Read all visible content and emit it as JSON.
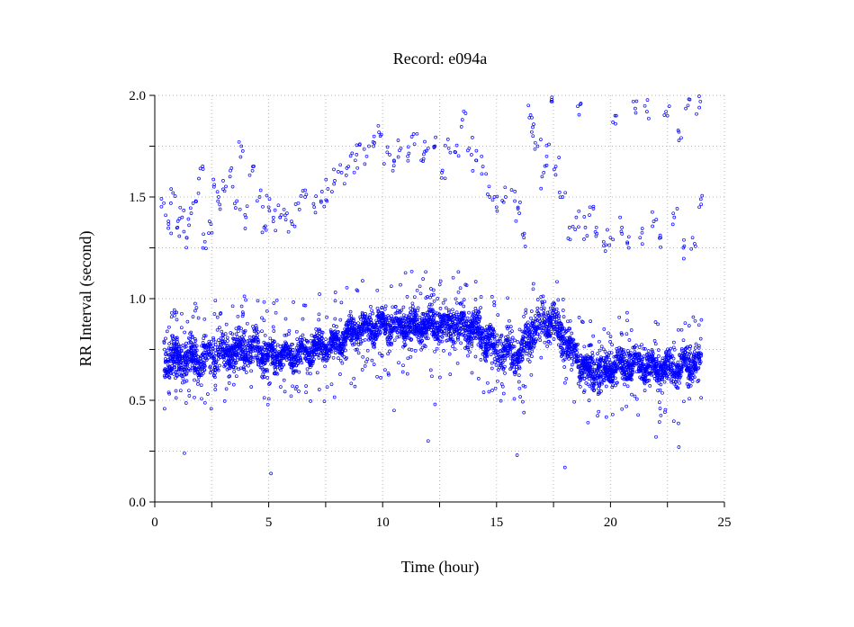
{
  "chart_data": {
    "type": "scatter",
    "title": "Record:  e094a",
    "xlabel": "Time (hour)",
    "ylabel": "RR Interval (second)",
    "xlim": [
      0,
      25
    ],
    "ylim": [
      0.0,
      2.0
    ],
    "x_ticks": [
      0,
      5,
      10,
      15,
      20,
      25
    ],
    "x_tick_labels": [
      "0",
      "5",
      "10",
      "15",
      "20",
      "25"
    ],
    "y_ticks": [
      0.0,
      0.5,
      1.0,
      1.5,
      2.0
    ],
    "y_tick_labels": [
      "0.0",
      "0.5",
      "1.0",
      "1.5",
      "2.0"
    ],
    "grid": true,
    "marker": "open-circle",
    "series_color": "#0000ff",
    "band": [
      {
        "x": 0.4,
        "mean": 0.72,
        "sd": 0.07
      },
      {
        "x": 1.0,
        "mean": 0.7,
        "sd": 0.07
      },
      {
        "x": 2.0,
        "mean": 0.71,
        "sd": 0.07
      },
      {
        "x": 3.0,
        "mean": 0.73,
        "sd": 0.07
      },
      {
        "x": 4.0,
        "mean": 0.75,
        "sd": 0.07
      },
      {
        "x": 5.0,
        "mean": 0.73,
        "sd": 0.06
      },
      {
        "x": 6.0,
        "mean": 0.72,
        "sd": 0.05
      },
      {
        "x": 7.0,
        "mean": 0.75,
        "sd": 0.05
      },
      {
        "x": 8.0,
        "mean": 0.78,
        "sd": 0.05
      },
      {
        "x": 9.0,
        "mean": 0.86,
        "sd": 0.05
      },
      {
        "x": 10.0,
        "mean": 0.86,
        "sd": 0.06
      },
      {
        "x": 11.0,
        "mean": 0.86,
        "sd": 0.06
      },
      {
        "x": 12.0,
        "mean": 0.87,
        "sd": 0.06
      },
      {
        "x": 13.0,
        "mean": 0.88,
        "sd": 0.07
      },
      {
        "x": 14.0,
        "mean": 0.86,
        "sd": 0.06
      },
      {
        "x": 15.0,
        "mean": 0.75,
        "sd": 0.07
      },
      {
        "x": 16.0,
        "mean": 0.73,
        "sd": 0.07
      },
      {
        "x": 16.8,
        "mean": 0.88,
        "sd": 0.08
      },
      {
        "x": 17.5,
        "mean": 0.88,
        "sd": 0.08
      },
      {
        "x": 18.5,
        "mean": 0.72,
        "sd": 0.07
      },
      {
        "x": 19.2,
        "mean": 0.63,
        "sd": 0.07
      },
      {
        "x": 20.0,
        "mean": 0.66,
        "sd": 0.06
      },
      {
        "x": 21.0,
        "mean": 0.68,
        "sd": 0.06
      },
      {
        "x": 22.0,
        "mean": 0.66,
        "sd": 0.06
      },
      {
        "x": 23.0,
        "mean": 0.66,
        "sd": 0.06
      },
      {
        "x": 24.0,
        "mean": 0.7,
        "sd": 0.06
      }
    ],
    "upper_cluster": [
      [
        0.4,
        1.47
      ],
      [
        0.6,
        1.38
      ],
      [
        0.8,
        1.52
      ],
      [
        1.0,
        1.35
      ],
      [
        1.2,
        1.4
      ],
      [
        1.4,
        1.3
      ],
      [
        1.6,
        1.42
      ],
      [
        1.8,
        1.48
      ],
      [
        2.0,
        1.64
      ],
      [
        2.2,
        1.28
      ],
      [
        2.4,
        1.38
      ],
      [
        2.6,
        1.55
      ],
      [
        2.8,
        1.5
      ],
      [
        3.0,
        1.58
      ],
      [
        3.3,
        1.6
      ],
      [
        3.6,
        1.48
      ],
      [
        3.8,
        1.75
      ],
      [
        4.0,
        1.4
      ],
      [
        4.3,
        1.65
      ],
      [
        4.6,
        1.5
      ],
      [
        4.8,
        1.35
      ],
      [
        5.0,
        1.45
      ],
      [
        5.2,
        1.38
      ],
      [
        5.5,
        1.4
      ],
      [
        5.8,
        1.42
      ],
      [
        6.0,
        1.38
      ],
      [
        6.3,
        1.47
      ],
      [
        6.6,
        1.5
      ],
      [
        7.0,
        1.45
      ],
      [
        7.3,
        1.48
      ],
      [
        7.6,
        1.54
      ],
      [
        7.9,
        1.58
      ],
      [
        8.2,
        1.62
      ],
      [
        8.5,
        1.65
      ],
      [
        8.8,
        1.68
      ],
      [
        9.0,
        1.76
      ],
      [
        9.3,
        1.7
      ],
      [
        9.6,
        1.75
      ],
      [
        9.9,
        1.8
      ],
      [
        10.2,
        1.72
      ],
      [
        10.5,
        1.68
      ],
      [
        10.8,
        1.74
      ],
      [
        11.1,
        1.7
      ],
      [
        11.4,
        1.76
      ],
      [
        11.7,
        1.68
      ],
      [
        12.0,
        1.74
      ],
      [
        12.3,
        1.75
      ],
      [
        12.6,
        1.62
      ],
      [
        12.9,
        1.74
      ],
      [
        13.2,
        1.72
      ],
      [
        13.5,
        1.88
      ],
      [
        13.8,
        1.74
      ],
      [
        14.1,
        1.68
      ],
      [
        14.4,
        1.65
      ],
      [
        14.7,
        1.5
      ],
      [
        15.0,
        1.45
      ],
      [
        15.4,
        1.5
      ],
      [
        15.8,
        1.48
      ],
      [
        16.0,
        1.42
      ],
      [
        16.2,
        1.3
      ],
      [
        16.4,
        1.95
      ],
      [
        16.6,
        1.8
      ],
      [
        16.8,
        1.75
      ],
      [
        17.0,
        1.6
      ],
      [
        17.2,
        1.7
      ],
      [
        17.4,
        1.97
      ],
      [
        17.6,
        1.65
      ],
      [
        17.9,
        1.5
      ],
      [
        18.2,
        1.35
      ],
      [
        18.5,
        1.4
      ],
      [
        18.7,
        1.96
      ],
      [
        18.9,
        1.35
      ],
      [
        19.1,
        1.45
      ],
      [
        19.4,
        1.32
      ],
      [
        19.7,
        1.28
      ],
      [
        20.0,
        1.3
      ],
      [
        20.2,
        1.9
      ],
      [
        20.5,
        1.35
      ],
      [
        20.8,
        1.25
      ],
      [
        21.0,
        1.97
      ],
      [
        21.3,
        1.3
      ],
      [
        21.6,
        1.92
      ],
      [
        21.9,
        1.38
      ],
      [
        22.2,
        1.3
      ],
      [
        22.5,
        1.9
      ],
      [
        22.8,
        1.4
      ],
      [
        23.0,
        1.82
      ],
      [
        23.2,
        1.25
      ],
      [
        23.4,
        1.95
      ],
      [
        23.6,
        1.3
      ],
      [
        23.9,
        1.45
      ],
      [
        23.9,
        1.94
      ]
    ],
    "outliers": [
      [
        1.3,
        0.24
      ],
      [
        5.1,
        0.14
      ],
      [
        12.0,
        0.3
      ],
      [
        15.9,
        0.23
      ],
      [
        18.0,
        0.17
      ],
      [
        22.0,
        0.32
      ],
      [
        23.0,
        0.27
      ],
      [
        16.2,
        0.44
      ],
      [
        12.3,
        0.48
      ],
      [
        10.5,
        0.45
      ]
    ]
  }
}
